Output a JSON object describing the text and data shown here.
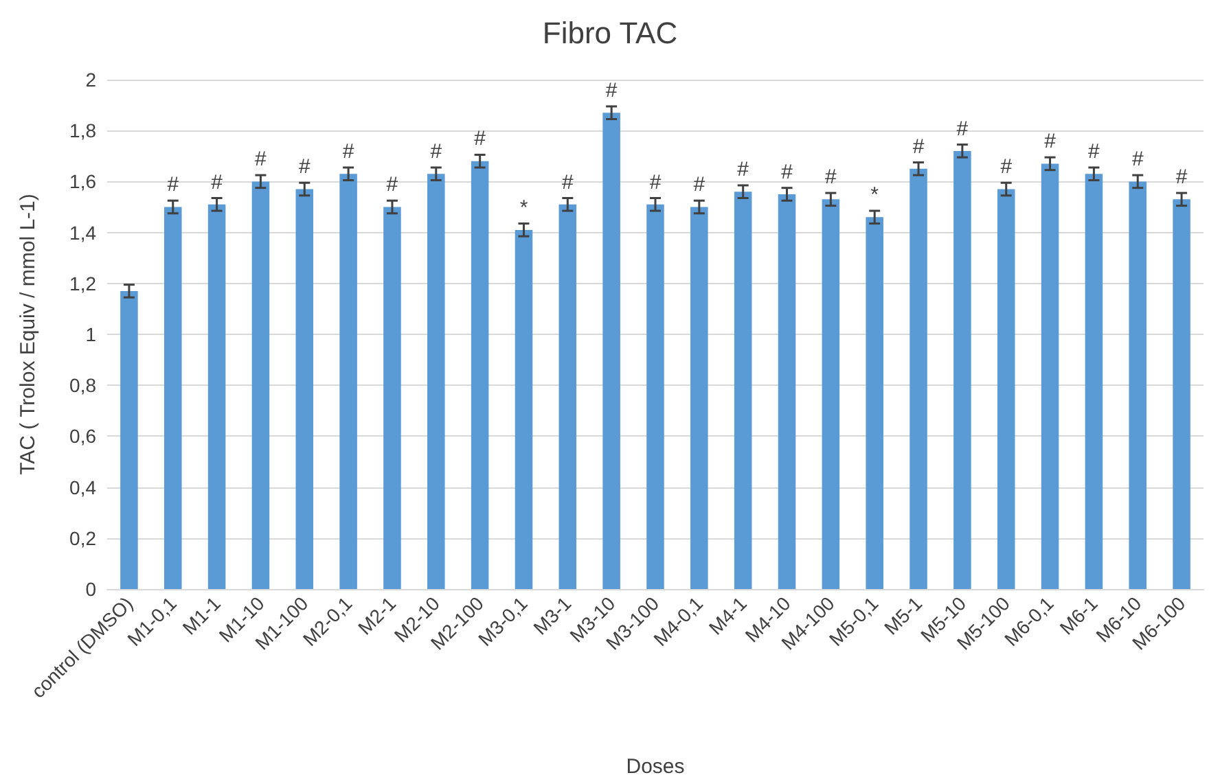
{
  "chart_data": {
    "type": "bar",
    "title": "Fibro TAC",
    "xlabel": "Doses",
    "ylabel": "TAC ( Trolox Equiv / mmol L-1)",
    "categories": [
      "control (DMSO)",
      "M1-0,1",
      "M1-1",
      "M1-10",
      "M1-100",
      "M2-0,1",
      "M2-1",
      "M2-10",
      "M2-100",
      "M3-0,1",
      "M3-1",
      "M3-10",
      "M3-100",
      "M4-0,1",
      "M4-1",
      "M4-10",
      "M4-100",
      "M5-0,1",
      "M5-1",
      "M5-10",
      "M5-100",
      "M6-0,1",
      "M6-1",
      "M6-10",
      "M6-100"
    ],
    "values": [
      1.17,
      1.5,
      1.51,
      1.6,
      1.57,
      1.63,
      1.5,
      1.63,
      1.68,
      1.41,
      1.51,
      1.87,
      1.51,
      1.5,
      1.56,
      1.55,
      1.53,
      1.46,
      1.65,
      1.72,
      1.57,
      1.67,
      1.63,
      1.6,
      1.53
    ],
    "errors": [
      0.025,
      0.025,
      0.025,
      0.025,
      0.025,
      0.025,
      0.025,
      0.025,
      0.025,
      0.025,
      0.025,
      0.025,
      0.025,
      0.025,
      0.025,
      0.025,
      0.025,
      0.025,
      0.025,
      0.025,
      0.025,
      0.025,
      0.025,
      0.025,
      0.025
    ],
    "color": "#5b9bd5",
    "ylim": [
      0,
      2
    ],
    "yticks": [
      {
        "value": 0,
        "label": "0"
      },
      {
        "value": 0.2,
        "label": "0,2"
      },
      {
        "value": 0.4,
        "label": "0,4"
      },
      {
        "value": 0.6,
        "label": "0,6"
      },
      {
        "value": 0.8,
        "label": "0,8"
      },
      {
        "value": 1,
        "label": "1"
      },
      {
        "value": 1.2,
        "label": "1,2"
      },
      {
        "value": 1.4,
        "label": "1,4"
      },
      {
        "value": 1.6,
        "label": "1,6"
      },
      {
        "value": 1.8,
        "label": "1,8"
      },
      {
        "value": 2,
        "label": "2"
      }
    ],
    "grid": "y",
    "annotations": [
      {
        "text": "#",
        "x": "M1-0,1",
        "y": 1.525
      },
      {
        "text": "#",
        "x": "M1-1",
        "y": 1.535
      },
      {
        "text": "#",
        "x": "M1-10",
        "y": 1.625
      },
      {
        "text": "#",
        "x": "M1-100",
        "y": 1.595
      },
      {
        "text": "#",
        "x": "M2-0,1",
        "y": 1.655
      },
      {
        "text": "#",
        "x": "M2-1",
        "y": 1.525
      },
      {
        "text": "#",
        "x": "M2-10",
        "y": 1.655
      },
      {
        "text": "#",
        "x": "M2-100",
        "y": 1.705
      },
      {
        "text": "*",
        "x": "M3-0,1",
        "y": 1.435
      },
      {
        "text": "#",
        "x": "M3-1",
        "y": 1.535
      },
      {
        "text": "#",
        "x": "M3-10",
        "y": 1.895
      },
      {
        "text": "#",
        "x": "M3-100",
        "y": 1.535
      },
      {
        "text": "#",
        "x": "M4-0,1",
        "y": 1.525
      },
      {
        "text": "#",
        "x": "M4-1",
        "y": 1.585
      },
      {
        "text": "#",
        "x": "M4-10",
        "y": 1.575
      },
      {
        "text": "#",
        "x": "M4-100",
        "y": 1.555
      },
      {
        "text": "*",
        "x": "M5-0,1",
        "y": 1.485
      },
      {
        "text": "#",
        "x": "M5-1",
        "y": 1.675
      },
      {
        "text": "#",
        "x": "M5-10",
        "y": 1.745
      },
      {
        "text": "#",
        "x": "M5-100",
        "y": 1.595
      },
      {
        "text": "#",
        "x": "M6-0,1",
        "y": 1.695
      },
      {
        "text": "#",
        "x": "M6-1",
        "y": 1.655
      },
      {
        "text": "#",
        "x": "M6-10",
        "y": 1.625
      },
      {
        "text": "#",
        "x": "M6-100",
        "y": 1.555
      }
    ]
  }
}
